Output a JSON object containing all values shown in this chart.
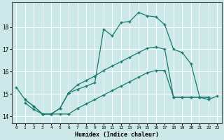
{
  "xlabel": "Humidex (Indice chaleur)",
  "background_color": "#cce8e8",
  "grid_color": "#ffffff",
  "line_color": "#1a7a6e",
  "xlim": [
    -0.5,
    23.5
  ],
  "ylim": [
    13.7,
    19.1
  ],
  "yticks": [
    14,
    15,
    16,
    17,
    18
  ],
  "xticks": [
    0,
    1,
    2,
    3,
    4,
    5,
    6,
    7,
    8,
    9,
    10,
    11,
    12,
    13,
    14,
    15,
    16,
    17,
    18,
    19,
    20,
    21,
    22,
    23
  ],
  "series1_x": [
    0,
    1,
    2,
    3,
    4,
    5,
    6,
    7,
    8,
    9,
    10,
    11,
    12,
    13,
    14,
    15,
    16,
    17,
    18,
    19,
    20,
    21,
    22,
    23
  ],
  "series1_y": [
    15.3,
    14.75,
    14.45,
    14.1,
    14.1,
    14.35,
    15.05,
    15.2,
    15.35,
    15.5,
    17.9,
    17.6,
    18.2,
    18.25,
    18.65,
    18.5,
    18.45,
    18.1,
    17.0,
    16.85,
    16.35,
    14.85,
    14.75,
    14.9
  ],
  "series2_x": [
    1,
    2,
    3,
    4,
    5,
    6,
    7,
    8,
    9,
    10,
    11,
    12,
    13,
    14,
    15,
    16,
    17,
    18,
    19,
    20,
    21,
    22
  ],
  "series2_y": [
    14.75,
    14.45,
    14.1,
    14.1,
    14.35,
    15.05,
    15.4,
    15.6,
    15.8,
    16.05,
    16.25,
    16.45,
    16.65,
    16.85,
    17.05,
    17.1,
    17.0,
    14.85,
    14.85,
    14.85,
    14.85,
    14.85
  ],
  "series3_x": [
    1,
    2,
    3,
    4,
    5,
    6,
    7,
    8,
    9,
    10,
    11,
    12,
    13,
    14,
    15,
    16,
    17,
    18,
    19,
    20,
    21,
    22
  ],
  "series3_y": [
    14.6,
    14.3,
    14.1,
    14.1,
    14.1,
    14.1,
    14.35,
    14.55,
    14.75,
    14.95,
    15.15,
    15.35,
    15.55,
    15.75,
    15.95,
    16.05,
    16.05,
    14.85,
    14.85,
    14.85,
    14.85,
    14.85
  ]
}
